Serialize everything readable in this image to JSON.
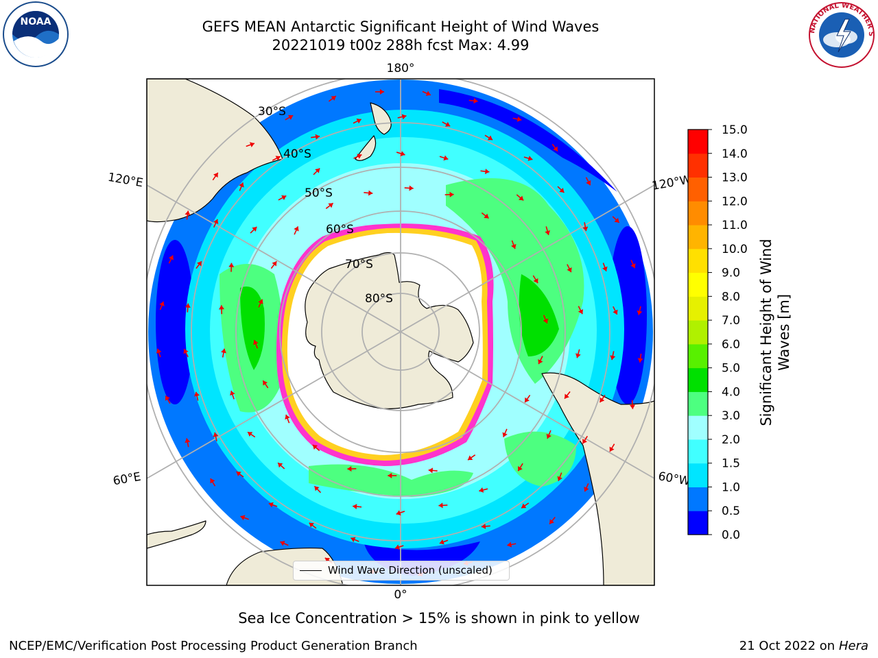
{
  "header": {
    "title_line1": "GEFS MEAN Antarctic Significant Height of Wind Waves",
    "title_line2": "20221019 t00z 288h fcst   Max: 4.99"
  },
  "logos": {
    "noaa_text": "NOAA",
    "nws_text": "NATIONAL WEATHER SERVICE"
  },
  "map": {
    "longitude_labels": [
      "180°",
      "120°E",
      "120°W",
      "60°E",
      "60°W",
      "0°"
    ],
    "latitude_labels": [
      "30°S",
      "40°S",
      "50°S",
      "60°S",
      "70°S",
      "80°S"
    ],
    "legend_label": "Wind Wave Direction (unscaled)"
  },
  "colorbar": {
    "label": "Significant Height of Wind Waves [m]",
    "label_line1": "Significant Height of Wind",
    "label_line2": "Waves [m]",
    "ticks": [
      "0.0",
      "0.5",
      "1.0",
      "1.5",
      "2.0",
      "3.0",
      "4.0",
      "5.0",
      "6.0",
      "7.0",
      "8.0",
      "9.0",
      "10.0",
      "11.0",
      "12.0",
      "13.0",
      "14.0",
      "15.0"
    ],
    "colors": [
      "#0000ff",
      "#0078ff",
      "#00e5ff",
      "#41ffff",
      "#a0ffff",
      "#4dff80",
      "#00e000",
      "#58f000",
      "#b0f000",
      "#e6f000",
      "#ffff00",
      "#ffe000",
      "#ffb400",
      "#ff8c00",
      "#ff6000",
      "#ff3000",
      "#ff0000"
    ]
  },
  "colors": {
    "land": "#efebd8",
    "sea_ice": "#ffffff",
    "ice_edge": "#ff33cc",
    "arrow": "#ee0000",
    "grid": "#b0b0b0"
  },
  "caption": "Sea Ice Concentration > 15% is shown in pink to yellow",
  "footer": {
    "left": "NCEP/EMC/Verification Post Processing Product Generation Branch",
    "right_prefix": "21 Oct 2022 on ",
    "right_host": "Hera"
  }
}
